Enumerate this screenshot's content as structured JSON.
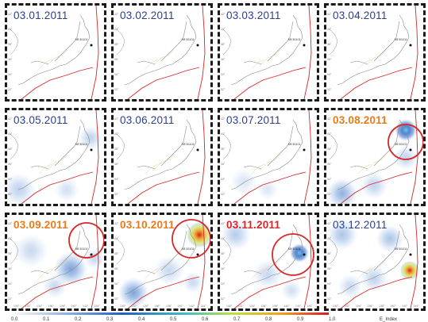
{
  "panels": [
    {
      "date": "03.01.2011",
      "date_color": "blue",
      "highlighted": false,
      "label": "label_blue"
    },
    {
      "date": "03.02.2011",
      "date_color": "blue",
      "highlighted": false,
      "label": "label_blue"
    },
    {
      "date": "03.03.2011",
      "date_color": "blue",
      "highlighted": false,
      "label": "label_blue"
    },
    {
      "date": "03.04.2011",
      "date_color": "blue",
      "highlighted": false,
      "label": "label_blue"
    },
    {
      "date": "03.05.2011",
      "date_color": "blue",
      "highlighted": false,
      "label": "label_blue"
    },
    {
      "date": "03.06.2011",
      "date_color": "blue",
      "highlighted": false,
      "label": "label_blue"
    },
    {
      "date": "03.07.2011",
      "date_color": "blue",
      "highlighted": false,
      "label": "label_blue"
    },
    {
      "date": "03.08.2011",
      "date_color": "orange",
      "highlighted": true,
      "label": "label_orange"
    },
    {
      "date": "03.09.2011",
      "date_color": "orange",
      "highlighted": true,
      "label": "label_orange"
    },
    {
      "date": "03.10.2011",
      "date_color": "orange",
      "highlighted": true,
      "label": "label_orange"
    },
    {
      "date": "03.11.2011",
      "date_color": "red",
      "highlighted": true,
      "label": "label_red"
    },
    {
      "date": "03.12.2011",
      "date_color": "blue",
      "highlighted": false,
      "label": "label_blue"
    }
  ],
  "axis": {
    "lat_ticks": [
      "42°",
      "40°",
      "38°",
      "36°",
      "34°",
      "32°"
    ],
    "lon_ticks": [
      "130°",
      "132°",
      "134°",
      "136°",
      "138°",
      "140°",
      "142°",
      "144°"
    ]
  },
  "colorbar": {
    "ticks": [
      "0.0",
      "0.1",
      "0.2",
      "0.3",
      "0.4",
      "0.5",
      "0.6",
      "0.7",
      "0.8",
      "0.9",
      "1.0"
    ],
    "label": "E_Index"
  },
  "epicenter_label": "M9 3/11/11",
  "colors": {
    "blue_text": "#2c3e8f",
    "orange_text": "#e87b1a",
    "red_text": "#d62828",
    "circle": "#d62828"
  }
}
